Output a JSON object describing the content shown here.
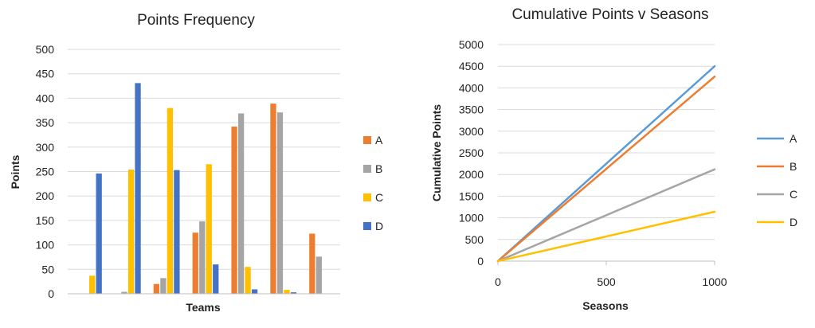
{
  "chart_data": [
    {
      "type": "bar",
      "title": "Points Frequency",
      "xlabel": "Teams",
      "ylabel": "Points",
      "ylim": [
        0,
        500
      ],
      "yticks": [
        0,
        50,
        100,
        150,
        200,
        250,
        300,
        350,
        400,
        450,
        500
      ],
      "grid": true,
      "legend": "right",
      "categories": [
        "",
        "",
        "",
        "",
        "",
        "",
        ""
      ],
      "series": [
        {
          "name": "A",
          "color": "#ED7D31",
          "values": [
            0,
            0,
            20,
            125,
            342,
            389,
            123
          ]
        },
        {
          "name": "B",
          "color": "#A5A5A5",
          "values": [
            0,
            4,
            32,
            148,
            369,
            371,
            76
          ]
        },
        {
          "name": "C",
          "color": "#FFC000",
          "values": [
            37,
            254,
            380,
            265,
            55,
            8,
            0
          ]
        },
        {
          "name": "D",
          "color": "#4472C4",
          "values": [
            246,
            431,
            253,
            60,
            9,
            3,
            0
          ]
        }
      ]
    },
    {
      "type": "line",
      "title": "Cumulative Points v Seasons",
      "xlabel": "Seasons",
      "ylabel": "Cumulative Points",
      "xlim": [
        0,
        1000
      ],
      "ylim": [
        0,
        5000
      ],
      "xticks": [
        0,
        500,
        1000
      ],
      "yticks": [
        0,
        500,
        1000,
        1500,
        2000,
        2500,
        3000,
        3500,
        4000,
        4500,
        5000
      ],
      "grid": true,
      "legend": "right",
      "series": [
        {
          "name": "A",
          "color": "#5B9BD5",
          "x": [
            0,
            1000
          ],
          "y": [
            0,
            4500
          ]
        },
        {
          "name": "B",
          "color": "#ED7D31",
          "x": [
            0,
            1000
          ],
          "y": [
            0,
            4260
          ]
        },
        {
          "name": "C",
          "color": "#A5A5A5",
          "x": [
            0,
            1000
          ],
          "y": [
            0,
            2120
          ]
        },
        {
          "name": "D",
          "color": "#FFC000",
          "x": [
            0,
            1000
          ],
          "y": [
            0,
            1140
          ]
        }
      ]
    }
  ]
}
